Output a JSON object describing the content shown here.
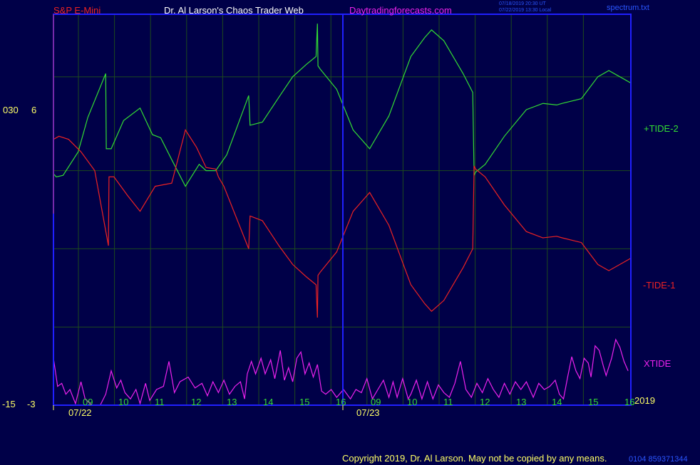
{
  "header": {
    "symbol": "S&P E-Mini",
    "site_name": "Dr. Al Larson's Chaos Trader Web",
    "site_url": "Daytradingforecasts.com",
    "timestamp_ut": "07/18/2019 20:30 UT",
    "timestamp_local": "07/22/2019 13:30 Local",
    "file_name": "spectrum.txt"
  },
  "footer": {
    "copyright": "Copyright 2019, Dr. Al Larson. May not be copied by any means.",
    "id_code": "0104 859371344",
    "year": "2019"
  },
  "colors": {
    "background": "#000048",
    "frame": "#2020ff",
    "grid": "#1d4a1d",
    "tide_plus": "#33dd33",
    "tide_minus": "#ee2222",
    "xtide": "#ee22ee",
    "axis_text": "#ffff66",
    "hour_text": "#33dd33"
  },
  "chart_data": {
    "type": "line",
    "title": "S&P E-Mini",
    "left_axis_labels": {
      "top_left": "030",
      "top_right": "6",
      "bottom_left": "-15",
      "bottom_right": "-3"
    },
    "x_hour_labels_day1": [
      "09",
      "10",
      "11",
      "12",
      "13",
      "14",
      "15",
      "16"
    ],
    "x_hour_labels_day2": [
      "09",
      "10",
      "11",
      "12",
      "13",
      "14",
      "15",
      "16"
    ],
    "x_date_labels": [
      "07/22",
      "07/23"
    ],
    "x": [
      0,
      0.5,
      1,
      1.5,
      2,
      2.5,
      3,
      3.5,
      4,
      4.5,
      5,
      5.5,
      6,
      6.5,
      7,
      7.5,
      8,
      8.5,
      9,
      9.5,
      10,
      10.5,
      11,
      11.5,
      12,
      12.5,
      13,
      13.5,
      14,
      14.5,
      15,
      15.5,
      16
    ],
    "series": [
      {
        "name": "+TIDE-2",
        "color": "#33dd33",
        "points": [
          [
            0,
            -0.2
          ],
          [
            0.1,
            -0.4
          ],
          [
            0.35,
            -0.3
          ],
          [
            0.9,
            1.2
          ],
          [
            1.25,
            3.4
          ],
          [
            1.9,
            6.2
          ],
          [
            1.92,
            1.4
          ],
          [
            2.1,
            1.4
          ],
          [
            2.55,
            3.2
          ],
          [
            3.15,
            4.0
          ],
          [
            3.6,
            2.3
          ],
          [
            3.9,
            2.1
          ],
          [
            4.3,
            0.7
          ],
          [
            4.8,
            -1.0
          ],
          [
            5.3,
            0.4
          ],
          [
            5.55,
            0.0
          ],
          [
            5.9,
            0.0
          ],
          [
            6.3,
            1.0
          ],
          [
            7.1,
            4.8
          ],
          [
            7.15,
            2.9
          ],
          [
            7.6,
            3.1
          ],
          [
            8.2,
            4.7
          ],
          [
            8.7,
            6.0
          ],
          [
            9.2,
            6.8
          ],
          [
            9.55,
            7.3
          ],
          [
            9.6,
            9.4
          ],
          [
            9.62,
            6.7
          ],
          [
            9.7,
            6.5
          ],
          [
            10.3,
            5.2
          ],
          [
            10.9,
            2.6
          ],
          [
            11.5,
            1.4
          ],
          [
            12.2,
            3.5
          ],
          [
            13.0,
            7.3
          ],
          [
            13.5,
            8.5
          ],
          [
            13.75,
            9.0
          ],
          [
            14.2,
            8.3
          ],
          [
            14.9,
            6.2
          ],
          [
            15.25,
            5.0
          ],
          [
            15.3,
            -0.3
          ],
          [
            15.35,
            -0.1
          ],
          [
            15.7,
            0.4
          ],
          [
            16.4,
            2.2
          ],
          [
            17.2,
            3.9
          ],
          [
            17.8,
            4.3
          ],
          [
            18.3,
            4.2
          ],
          [
            18.5,
            4.3
          ],
          [
            19.2,
            4.6
          ],
          [
            19.8,
            6.0
          ],
          [
            20.2,
            6.4
          ],
          [
            20.8,
            5.8
          ],
          [
            21.0,
            5.6
          ]
        ]
      },
      {
        "name": "-TIDE-1",
        "color": "#ee2222",
        "points": [
          [
            0,
            2.0
          ],
          [
            0.2,
            2.2
          ],
          [
            0.55,
            2.0
          ],
          [
            1.0,
            1.2
          ],
          [
            1.5,
            0.0
          ],
          [
            2.0,
            -4.8
          ],
          [
            2.02,
            -0.4
          ],
          [
            2.2,
            -0.4
          ],
          [
            2.7,
            -1.6
          ],
          [
            3.15,
            -2.6
          ],
          [
            3.7,
            -1.0
          ],
          [
            4.3,
            -0.8
          ],
          [
            4.8,
            2.6
          ],
          [
            5.2,
            1.5
          ],
          [
            5.55,
            0.2
          ],
          [
            5.9,
            0.1
          ],
          [
            6.0,
            -0.4
          ],
          [
            6.2,
            -1.0
          ],
          [
            7.1,
            -5.0
          ],
          [
            7.15,
            -2.9
          ],
          [
            7.6,
            -3.2
          ],
          [
            8.2,
            -4.8
          ],
          [
            8.7,
            -6.0
          ],
          [
            9.2,
            -6.8
          ],
          [
            9.55,
            -7.3
          ],
          [
            9.6,
            -9.4
          ],
          [
            9.62,
            -6.7
          ],
          [
            9.7,
            -6.5
          ],
          [
            10.3,
            -5.2
          ],
          [
            10.9,
            -2.6
          ],
          [
            11.5,
            -1.4
          ],
          [
            12.2,
            -3.5
          ],
          [
            13.0,
            -7.3
          ],
          [
            13.5,
            -8.5
          ],
          [
            13.75,
            -9.0
          ],
          [
            14.2,
            -8.3
          ],
          [
            14.9,
            -6.2
          ],
          [
            15.25,
            -5.0
          ],
          [
            15.3,
            0.3
          ],
          [
            15.35,
            0.1
          ],
          [
            15.7,
            -0.4
          ],
          [
            16.4,
            -2.2
          ],
          [
            17.2,
            -3.9
          ],
          [
            17.8,
            -4.3
          ],
          [
            18.3,
            -4.2
          ],
          [
            18.5,
            -4.3
          ],
          [
            19.2,
            -4.6
          ],
          [
            19.8,
            -6.0
          ],
          [
            20.2,
            -6.4
          ],
          [
            20.8,
            -5.8
          ],
          [
            21.0,
            -5.6
          ]
        ]
      },
      {
        "name": "XTIDE",
        "color": "#ee22ee",
        "points": [
          [
            0,
            -12.0
          ],
          [
            0.15,
            -13.8
          ],
          [
            0.3,
            -13.6
          ],
          [
            0.45,
            -14.3
          ],
          [
            0.6,
            -14.0
          ],
          [
            0.8,
            -14.9
          ],
          [
            1.0,
            -13.5
          ],
          [
            1.15,
            -14.6
          ],
          [
            1.4,
            -15.0
          ],
          [
            1.7,
            -15.0
          ],
          [
            1.9,
            -14.3
          ],
          [
            2.1,
            -12.8
          ],
          [
            2.3,
            -13.9
          ],
          [
            2.45,
            -13.4
          ],
          [
            2.6,
            -14.2
          ],
          [
            2.8,
            -14.6
          ],
          [
            3.0,
            -14.0
          ],
          [
            3.15,
            -14.9
          ],
          [
            3.35,
            -13.6
          ],
          [
            3.5,
            -14.7
          ],
          [
            3.75,
            -14.0
          ],
          [
            4.0,
            -13.8
          ],
          [
            4.2,
            -12.2
          ],
          [
            4.4,
            -14.2
          ],
          [
            4.6,
            -13.5
          ],
          [
            4.9,
            -13.2
          ],
          [
            5.15,
            -13.9
          ],
          [
            5.4,
            -13.6
          ],
          [
            5.6,
            -14.4
          ],
          [
            5.8,
            -13.5
          ],
          [
            6.0,
            -14.2
          ],
          [
            6.2,
            -13.4
          ],
          [
            6.4,
            -14.3
          ],
          [
            6.6,
            -13.8
          ],
          [
            6.8,
            -13.5
          ],
          [
            6.95,
            -14.6
          ],
          [
            7.05,
            -13.0
          ],
          [
            7.2,
            -12.2
          ],
          [
            7.35,
            -13.0
          ],
          [
            7.55,
            -12.0
          ],
          [
            7.7,
            -13.0
          ],
          [
            7.9,
            -12.1
          ],
          [
            8.05,
            -13.3
          ],
          [
            8.25,
            -11.5
          ],
          [
            8.4,
            -13.4
          ],
          [
            8.55,
            -12.6
          ],
          [
            8.7,
            -13.5
          ],
          [
            8.85,
            -12.0
          ],
          [
            9.0,
            -11.6
          ],
          [
            9.15,
            -13.0
          ],
          [
            9.3,
            -12.3
          ],
          [
            9.45,
            -13.2
          ],
          [
            9.6,
            -12.4
          ],
          [
            9.75,
            -14.1
          ],
          [
            9.9,
            -14.3
          ],
          [
            10.1,
            -14.0
          ],
          [
            10.3,
            -14.5
          ],
          [
            10.55,
            -14.0
          ],
          [
            10.8,
            -14.6
          ],
          [
            11.0,
            -14.0
          ],
          [
            11.2,
            -14.2
          ],
          [
            11.4,
            -13.3
          ],
          [
            11.6,
            -14.6
          ],
          [
            11.8,
            -14.0
          ],
          [
            12.0,
            -13.4
          ],
          [
            12.2,
            -14.5
          ],
          [
            12.35,
            -13.5
          ],
          [
            12.5,
            -14.5
          ],
          [
            12.7,
            -13.3
          ],
          [
            12.9,
            -14.6
          ],
          [
            13.0,
            -14.3
          ],
          [
            13.2,
            -13.4
          ],
          [
            13.4,
            -14.6
          ],
          [
            13.6,
            -13.5
          ],
          [
            13.8,
            -14.6
          ],
          [
            14.0,
            -13.7
          ],
          [
            14.2,
            -14.2
          ],
          [
            14.4,
            -14.5
          ],
          [
            14.6,
            -13.6
          ],
          [
            14.8,
            -12.2
          ],
          [
            15.0,
            -14.0
          ],
          [
            15.2,
            -14.5
          ],
          [
            15.4,
            -13.6
          ],
          [
            15.6,
            -14.2
          ],
          [
            15.8,
            -13.3
          ],
          [
            16.0,
            -14.0
          ],
          [
            16.2,
            -14.5
          ],
          [
            16.4,
            -13.6
          ],
          [
            16.6,
            -14.3
          ],
          [
            16.8,
            -13.5
          ],
          [
            17.0,
            -14.0
          ],
          [
            17.2,
            -13.5
          ],
          [
            17.45,
            -14.5
          ],
          [
            17.65,
            -13.6
          ],
          [
            17.85,
            -14.0
          ],
          [
            18.05,
            -13.8
          ],
          [
            18.25,
            -13.4
          ],
          [
            18.4,
            -14.3
          ],
          [
            18.55,
            -14.6
          ],
          [
            18.7,
            -13.2
          ],
          [
            18.85,
            -11.9
          ],
          [
            19.0,
            -12.8
          ],
          [
            19.15,
            -13.3
          ],
          [
            19.3,
            -12.0
          ],
          [
            19.45,
            -12.3
          ],
          [
            19.55,
            -13.2
          ],
          [
            19.7,
            -11.2
          ],
          [
            19.85,
            -11.5
          ],
          [
            20.0,
            -12.5
          ],
          [
            20.1,
            -13.1
          ],
          [
            20.3,
            -12.0
          ],
          [
            20.45,
            -10.8
          ],
          [
            20.6,
            -11.3
          ],
          [
            20.75,
            -12.2
          ],
          [
            20.9,
            -12.8
          ]
        ]
      }
    ],
    "xlim": [
      0,
      21
    ],
    "ylim": [
      -15,
      10
    ],
    "legend": [
      "+TIDE-2",
      "-TIDE-1",
      "XTIDE"
    ],
    "legend_placement": "right"
  }
}
